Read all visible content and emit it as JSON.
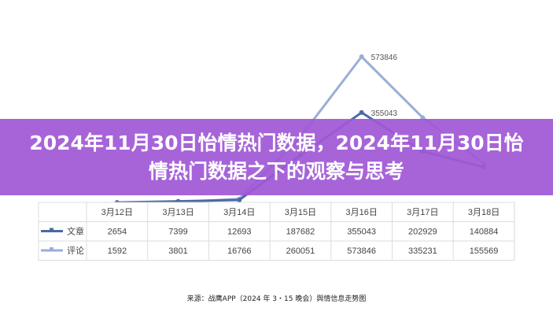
{
  "banner": {
    "title": "2024年11月30日怡情热门数据，2024年11月30日怡情热门数据之下的观察与思考",
    "color": "#a058d6"
  },
  "chart_data": {
    "type": "line",
    "categories": [
      "3月12日",
      "3月13日",
      "3月14日",
      "3月15日",
      "3月16日",
      "3月17日",
      "3月18日"
    ],
    "series": [
      {
        "name": "文章",
        "color": "#4a6aa5",
        "values": [
          2654,
          7399,
          12693,
          187682,
          355043,
          202929,
          140884
        ]
      },
      {
        "name": "评论",
        "color": "#9aaed6",
        "values": [
          1592,
          3801,
          16766,
          260051,
          573846,
          335231,
          155569
        ]
      }
    ],
    "annotations": [
      {
        "series": "评论",
        "category": "3月16日",
        "text": "573846"
      },
      {
        "series": "文章",
        "category": "3月16日",
        "text": "355043"
      }
    ],
    "ylim": [
      0,
      600000
    ],
    "grid": false,
    "legend": "data-table-left"
  },
  "source": "来源：战鹰APP（2024 年 3・15 晚会）舆情信息走势图"
}
